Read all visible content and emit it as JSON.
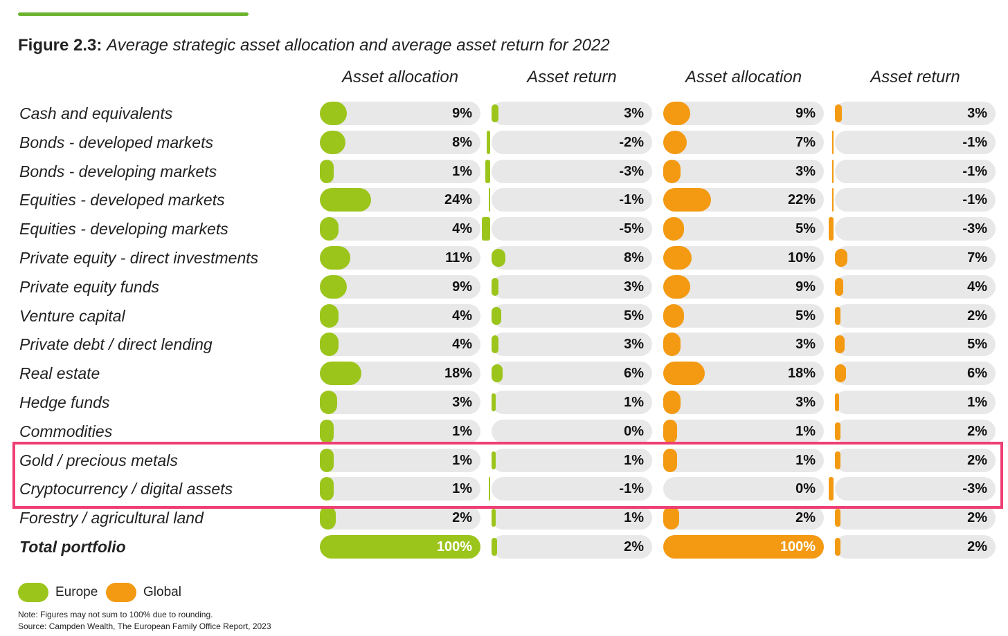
{
  "title_lead": "Figure 2.3:",
  "title_rest": "Average strategic asset allocation and average asset return for 2022",
  "colors": {
    "europe": "#9cc51c",
    "global": "#f39a12",
    "track": "#e8e8e8",
    "highlight": "#ee3f74",
    "rule": "#6cb32e"
  },
  "chart_data": {
    "type": "bar",
    "columns": [
      {
        "header": "Asset allocation",
        "series": "Europe",
        "metric": "allocation"
      },
      {
        "header": "Asset return",
        "series": "Europe",
        "metric": "return"
      },
      {
        "header": "Asset allocation",
        "series": "Global",
        "metric": "allocation"
      },
      {
        "header": "Asset return",
        "series": "Global",
        "metric": "return"
      }
    ],
    "categories": [
      "Cash and equivalents",
      "Bonds - developed markets",
      "Bonds - developing markets",
      "Equities - developed markets",
      "Equities - developing markets",
      "Private equity - direct investments",
      "Private equity funds",
      "Venture capital",
      "Private debt / direct lending",
      "Real estate",
      "Hedge funds",
      "Commodities",
      "Gold / precious metals",
      "Cryptocurrency / digital assets",
      "Forestry / agricultural land",
      "Total portfolio"
    ],
    "series": [
      {
        "name": "Europe",
        "allocation": [
          9,
          8,
          1,
          24,
          4,
          11,
          9,
          4,
          4,
          18,
          3,
          1,
          1,
          1,
          2,
          100
        ],
        "return": [
          3,
          -2,
          -3,
          -1,
          -5,
          8,
          3,
          5,
          3,
          6,
          1,
          0,
          1,
          -1,
          1,
          2
        ]
      },
      {
        "name": "Global",
        "allocation": [
          9,
          7,
          3,
          22,
          5,
          10,
          9,
          5,
          3,
          18,
          3,
          1,
          1,
          0,
          2,
          100
        ],
        "return": [
          3,
          -1,
          -1,
          -1,
          -3,
          7,
          4,
          2,
          5,
          6,
          1,
          2,
          2,
          -3,
          2,
          2
        ]
      }
    ],
    "unit": "%",
    "highlighted_rows": [
      "Gold / precious metals",
      "Cryptocurrency / digital assets"
    ],
    "legend": {
      "placement": "bottom-left",
      "items": [
        "Europe",
        "Global"
      ]
    }
  },
  "note": "Note: Figures may not sum to 100% due to rounding.",
  "source": "Source: Campden Wealth, The European Family Office Report, 2023"
}
